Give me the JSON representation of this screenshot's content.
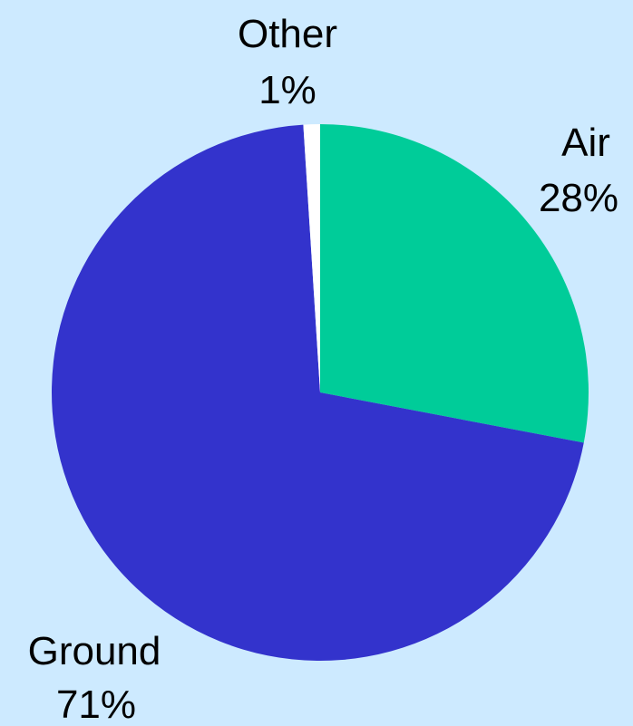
{
  "colors": {
    "background": "#cdeaff",
    "air": "#00cc99",
    "ground": "#3333cc",
    "other": "#ffffff"
  },
  "chart_data": {
    "type": "pie",
    "title": "",
    "slices": [
      {
        "name": "Air",
        "value": 28,
        "pct_label": "28%",
        "color": "#00cc99"
      },
      {
        "name": "Ground",
        "value": 71,
        "pct_label": "71%",
        "color": "#3333cc"
      },
      {
        "name": "Other",
        "value": 1,
        "pct_label": "1%",
        "color": "#ffffff"
      }
    ],
    "start": "top",
    "direction": "clockwise",
    "legend": "none"
  }
}
